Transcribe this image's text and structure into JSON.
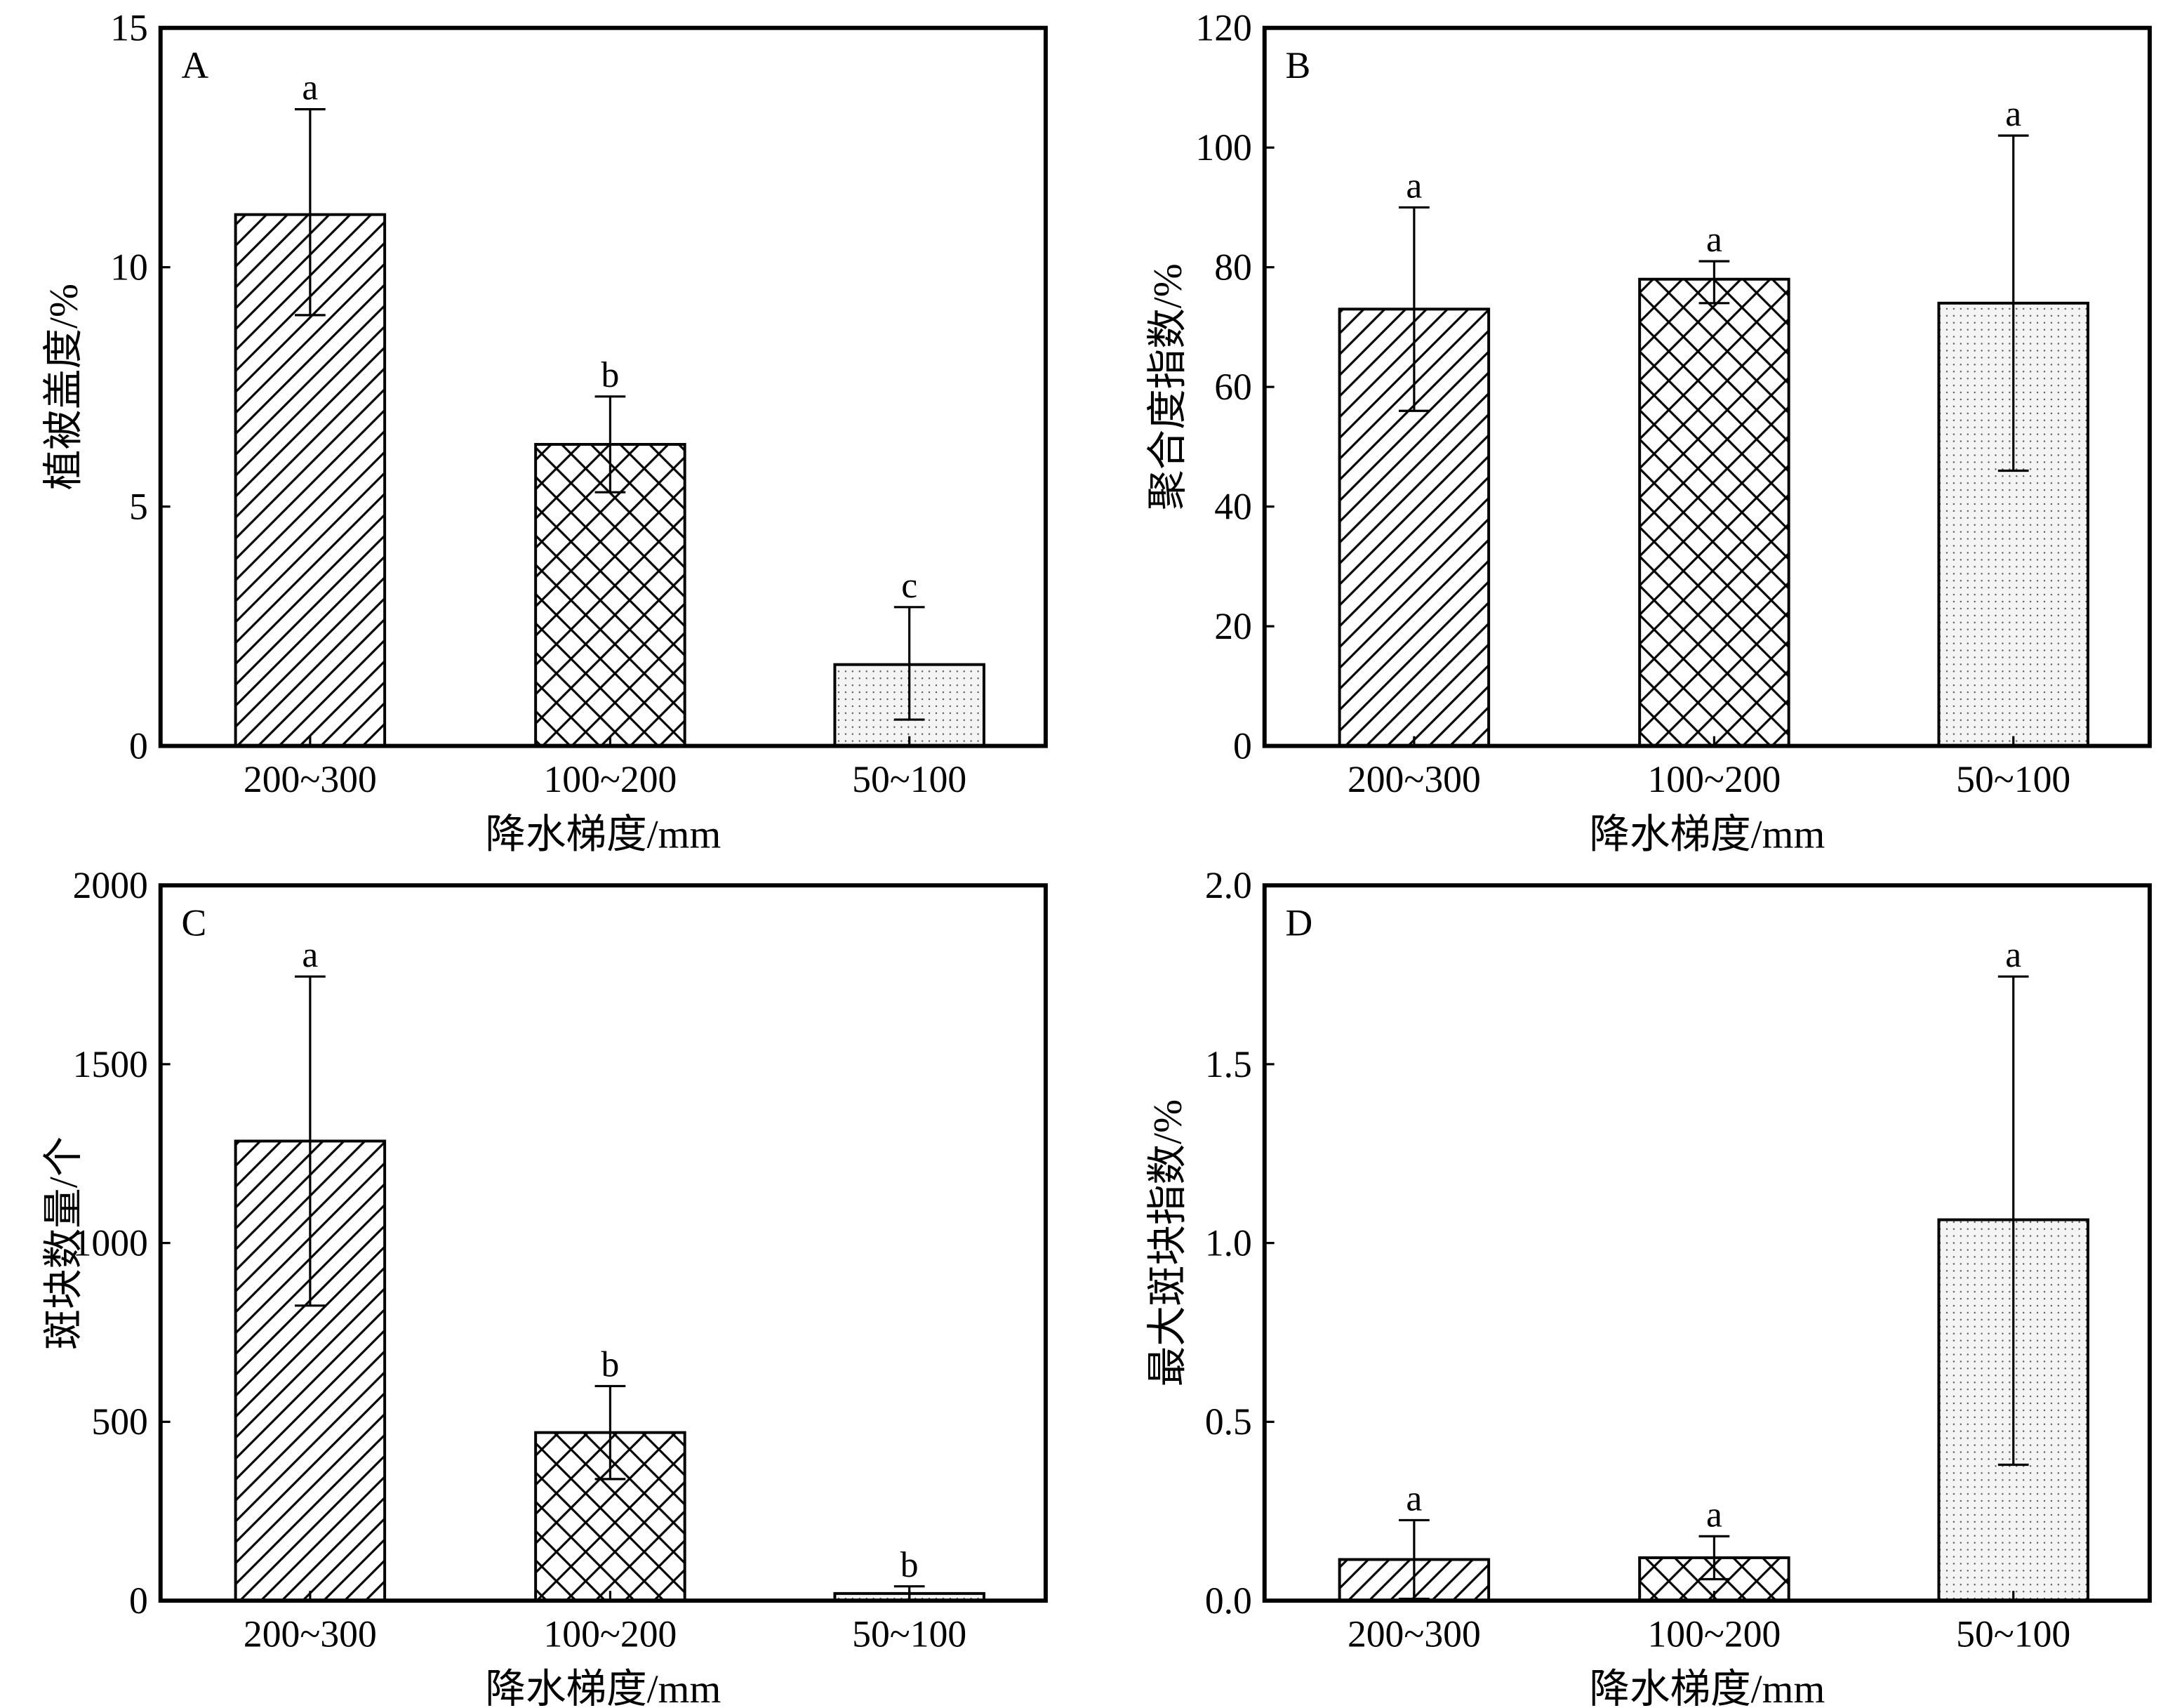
{
  "chart_data": [
    {
      "type": "bar",
      "panel_label": "A",
      "categories": [
        "200~300",
        "100~200",
        "50~100"
      ],
      "values": [
        11.1,
        6.3,
        1.7
      ],
      "error_low": [
        9.0,
        5.3,
        0.55
      ],
      "error_high": [
        13.3,
        7.3,
        2.9
      ],
      "significance_letters": [
        "a",
        "b",
        "c"
      ],
      "xlabel": "降水梯度/mm",
      "ylabel": "植被盖度/%",
      "ylim": [
        0,
        15
      ],
      "yticks": [
        0,
        5,
        10,
        15
      ],
      "grid": false
    },
    {
      "type": "bar",
      "panel_label": "B",
      "categories": [
        "200~300",
        "100~200",
        "50~100"
      ],
      "values": [
        73,
        78,
        74
      ],
      "error_low": [
        56,
        74,
        46
      ],
      "error_high": [
        90,
        81,
        102
      ],
      "significance_letters": [
        "a",
        "a",
        "a"
      ],
      "xlabel": "降水梯度/mm",
      "ylabel": "聚合度指数/%",
      "ylim": [
        0,
        120
      ],
      "yticks": [
        0,
        20,
        40,
        60,
        80,
        100,
        120
      ],
      "grid": false
    },
    {
      "type": "bar",
      "panel_label": "C",
      "categories": [
        "200~300",
        "100~200",
        "50~100"
      ],
      "values": [
        1285,
        470,
        20
      ],
      "error_low": [
        825,
        340,
        0
      ],
      "error_high": [
        1745,
        600,
        40
      ],
      "significance_letters": [
        "a",
        "b",
        "b"
      ],
      "xlabel": "降水梯度/mm",
      "ylabel": "斑块数量/个",
      "ylim": [
        0,
        2000
      ],
      "yticks": [
        0,
        500,
        1000,
        1500,
        2000
      ],
      "grid": false
    },
    {
      "type": "bar",
      "panel_label": "D",
      "categories": [
        "200~300",
        "100~200",
        "50~100"
      ],
      "values": [
        0.115,
        0.12,
        1.065
      ],
      "error_low": [
        0.005,
        0.06,
        0.38
      ],
      "error_high": [
        0.225,
        0.18,
        1.745
      ],
      "significance_letters": [
        "a",
        "a",
        "a"
      ],
      "xlabel": "降水梯度/mm",
      "ylabel": "最大斑块指数/%",
      "ylim": [
        0,
        2.0
      ],
      "yticks": [
        "0.0",
        "0.5",
        "1.0",
        "1.5",
        "2.0"
      ],
      "grid": false
    }
  ],
  "bar_patterns": [
    "diagonal-hatch",
    "cross-hatch",
    "dots"
  ],
  "colors": {
    "ink": "#000000",
    "background": "#ffffff",
    "dot_fill": "#f4f4f4"
  }
}
